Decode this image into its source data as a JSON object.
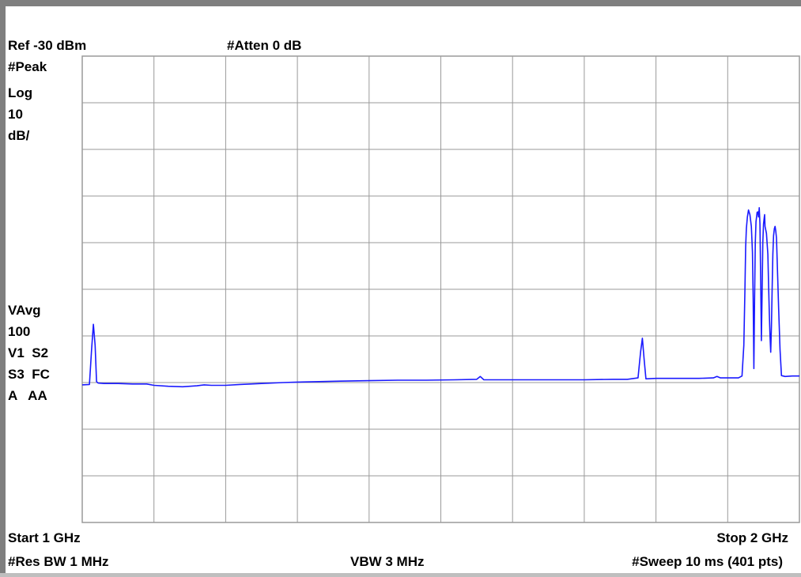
{
  "header": {
    "ref_level": "Ref -30 dBm",
    "attenuation": "#Atten 0 dB"
  },
  "left_panel": {
    "detector": "#Peak",
    "scale_type": "Log",
    "scale_value": "10",
    "scale_unit": "dB/",
    "avg_label": "VAvg",
    "avg_count": "100",
    "flags_1": "V1  S2",
    "flags_2": "S3  FC",
    "flags_3": "A   AA"
  },
  "footer": {
    "start": "Start 1 GHz",
    "stop": "Stop 2 GHz",
    "rbw": "#Res BW 1 MHz",
    "vbw": "VBW 3 MHz",
    "sweep": "#Sweep 10 ms (401 pts)"
  },
  "colors": {
    "trace": "#1a1aff",
    "grid": "#9a9a9a",
    "background": "#ffffff",
    "frame": "#7f7f7f"
  },
  "chart_data": {
    "type": "line",
    "xlim": [
      1.0,
      2.0
    ],
    "ylim": [
      -130,
      -30
    ],
    "grid": true,
    "grid_divisions": [
      10,
      10
    ],
    "x_unit": "GHz",
    "y_unit": "dBm",
    "series": [
      {
        "points": [
          [
            1.0,
            -100.5
          ],
          [
            1.01,
            -100.4
          ],
          [
            1.013,
            -93.0
          ],
          [
            1.0155,
            -87.5
          ],
          [
            1.018,
            -92.0
          ],
          [
            1.02,
            -99.8
          ],
          [
            1.022,
            -100.1
          ],
          [
            1.03,
            -100.2
          ],
          [
            1.05,
            -100.2
          ],
          [
            1.07,
            -100.3
          ],
          [
            1.09,
            -100.3
          ],
          [
            1.1,
            -100.6
          ],
          [
            1.12,
            -100.8
          ],
          [
            1.14,
            -100.9
          ],
          [
            1.16,
            -100.7
          ],
          [
            1.17,
            -100.5
          ],
          [
            1.18,
            -100.6
          ],
          [
            1.2,
            -100.6
          ],
          [
            1.22,
            -100.4
          ],
          [
            1.25,
            -100.2
          ],
          [
            1.28,
            -100.0
          ],
          [
            1.3,
            -99.9
          ],
          [
            1.33,
            -99.8
          ],
          [
            1.36,
            -99.7
          ],
          [
            1.4,
            -99.6
          ],
          [
            1.44,
            -99.5
          ],
          [
            1.48,
            -99.5
          ],
          [
            1.52,
            -99.4
          ],
          [
            1.55,
            -99.3
          ],
          [
            1.555,
            -98.7
          ],
          [
            1.56,
            -99.4
          ],
          [
            1.6,
            -99.4
          ],
          [
            1.65,
            -99.4
          ],
          [
            1.7,
            -99.4
          ],
          [
            1.74,
            -99.3
          ],
          [
            1.76,
            -99.3
          ],
          [
            1.775,
            -99.0
          ],
          [
            1.7785,
            -93.5
          ],
          [
            1.781,
            -90.5
          ],
          [
            1.7835,
            -95.0
          ],
          [
            1.786,
            -99.2
          ],
          [
            1.8,
            -99.1
          ],
          [
            1.83,
            -99.1
          ],
          [
            1.86,
            -99.1
          ],
          [
            1.88,
            -99.0
          ],
          [
            1.885,
            -98.7
          ],
          [
            1.89,
            -99.0
          ],
          [
            1.915,
            -99.0
          ],
          [
            1.92,
            -98.6
          ],
          [
            1.9225,
            -92.0
          ],
          [
            1.924,
            -80.0
          ],
          [
            1.925,
            -71.0
          ],
          [
            1.926,
            -67.0
          ],
          [
            1.9275,
            -64.5
          ],
          [
            1.929,
            -63.0
          ],
          [
            1.931,
            -64.0
          ],
          [
            1.933,
            -66.5
          ],
          [
            1.9345,
            -72.0
          ],
          [
            1.9355,
            -82.0
          ],
          [
            1.9365,
            -97.0
          ],
          [
            1.9375,
            -82.0
          ],
          [
            1.9385,
            -70.0
          ],
          [
            1.9395,
            -65.5
          ],
          [
            1.941,
            -63.5
          ],
          [
            1.942,
            -63.4
          ],
          [
            1.943,
            -64.5
          ],
          [
            1.944,
            -62.5
          ],
          [
            1.945,
            -66.0
          ],
          [
            1.946,
            -78.0
          ],
          [
            1.947,
            -91.0
          ],
          [
            1.948,
            -81.0
          ],
          [
            1.949,
            -70.0
          ],
          [
            1.95,
            -66.0
          ],
          [
            1.951,
            -64.5
          ],
          [
            1.9515,
            -64.0
          ],
          [
            1.952,
            -66.5
          ],
          [
            1.954,
            -68.0
          ],
          [
            1.956,
            -72.5
          ],
          [
            1.957,
            -79.0
          ],
          [
            1.958,
            -85.0
          ],
          [
            1.959,
            -90.0
          ],
          [
            1.96,
            -93.5
          ],
          [
            1.961,
            -88.0
          ],
          [
            1.962,
            -80.0
          ],
          [
            1.963,
            -72.5
          ],
          [
            1.964,
            -68.5
          ],
          [
            1.965,
            -67.0
          ],
          [
            1.966,
            -66.5
          ],
          [
            1.967,
            -67.5
          ],
          [
            1.968,
            -69.0
          ],
          [
            1.969,
            -74.0
          ],
          [
            1.971,
            -84.0
          ],
          [
            1.973,
            -93.0
          ],
          [
            1.975,
            -98.5
          ],
          [
            1.98,
            -98.7
          ],
          [
            1.99,
            -98.6
          ],
          [
            2.0,
            -98.6
          ]
        ]
      }
    ]
  }
}
